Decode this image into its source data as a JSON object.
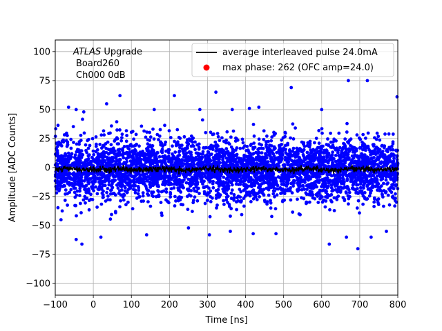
{
  "chart_data": {
    "type": "scatter",
    "title": "",
    "xlabel": "Time [ns]",
    "ylabel": "Amplitude [ADC Counts]",
    "xlim": [
      -100,
      800
    ],
    "ylim": [
      -110,
      110
    ],
    "xticks": [
      -100,
      0,
      100,
      200,
      300,
      400,
      500,
      600,
      700,
      800
    ],
    "yticks": [
      -100,
      -75,
      -50,
      -25,
      0,
      25,
      50,
      75,
      100
    ],
    "xtick_labels": [
      "−100",
      "0",
      "100",
      "200",
      "300",
      "400",
      "500",
      "600",
      "700",
      "800"
    ],
    "ytick_labels": [
      "−100",
      "−75",
      "−50",
      "−25",
      "0",
      "25",
      "50",
      "75",
      "100"
    ],
    "grid": true,
    "legend_position": "top-right",
    "annotation": {
      "line1_italic": "ATLAS",
      "line1_rest": " Upgrade",
      "line2": "Board260",
      "line3": "Ch000 0dB"
    },
    "series": [
      {
        "name": "average interleaved pulse 24.0mA",
        "kind": "line",
        "color": "#000000",
        "x_range": [
          -100,
          800
        ],
        "noise": "samples ~ N(0, 12) per point, dense sampling",
        "mean": -1.5
      },
      {
        "name": "max phase: 262 (OFC amp=24.0)",
        "kind": "marker",
        "color": "#ff0000"
      }
    ],
    "scatter_points": {
      "color": "#0000ff",
      "outliers": [
        [
          -65,
          52
        ],
        [
          -45,
          50
        ],
        [
          -25,
          48
        ],
        [
          35,
          55
        ],
        [
          70,
          62
        ],
        [
          160,
          50
        ],
        [
          213,
          62
        ],
        [
          280,
          50
        ],
        [
          322,
          65
        ],
        [
          365,
          50
        ],
        [
          410,
          51
        ],
        [
          435,
          52
        ],
        [
          520,
          69
        ],
        [
          600,
          50
        ],
        [
          670,
          75
        ],
        [
          720,
          75
        ],
        [
          798,
          61
        ],
        [
          -30,
          -66
        ],
        [
          -45,
          -62
        ],
        [
          20,
          -60
        ],
        [
          140,
          -58
        ],
        [
          305,
          -58
        ],
        [
          360,
          -55
        ],
        [
          420,
          -57
        ],
        [
          480,
          -57
        ],
        [
          620,
          -66
        ],
        [
          665,
          -60
        ],
        [
          695,
          -70
        ],
        [
          730,
          -60
        ],
        [
          770,
          -55
        ],
        [
          -85,
          -45
        ],
        [
          250,
          -52
        ]
      ]
    }
  }
}
